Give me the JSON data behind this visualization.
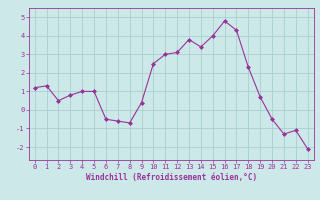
{
  "x": [
    0,
    1,
    2,
    3,
    4,
    5,
    6,
    7,
    8,
    9,
    10,
    11,
    12,
    13,
    14,
    15,
    16,
    17,
    18,
    19,
    20,
    21,
    22,
    23
  ],
  "y": [
    1.2,
    1.3,
    0.5,
    0.8,
    1.0,
    1.0,
    -0.5,
    -0.6,
    -0.7,
    0.4,
    2.5,
    3.0,
    3.1,
    3.8,
    3.4,
    4.0,
    4.8,
    4.3,
    2.3,
    0.7,
    -0.5,
    -1.3,
    -1.1,
    -2.1
  ],
  "line_color": "#993399",
  "marker_color": "#993399",
  "bg_color": "#cce8e8",
  "grid_color": "#aacece",
  "xlabel": "Windchill (Refroidissement éolien,°C)",
  "xlim": [
    -0.5,
    23.5
  ],
  "ylim": [
    -2.7,
    5.5
  ],
  "yticks": [
    -2,
    -1,
    0,
    1,
    2,
    3,
    4,
    5
  ],
  "xticks": [
    0,
    1,
    2,
    3,
    4,
    5,
    6,
    7,
    8,
    9,
    10,
    11,
    12,
    13,
    14,
    15,
    16,
    17,
    18,
    19,
    20,
    21,
    22,
    23
  ],
  "font_color": "#993399",
  "label_fontsize": 5.5,
  "tick_fontsize": 5.0
}
